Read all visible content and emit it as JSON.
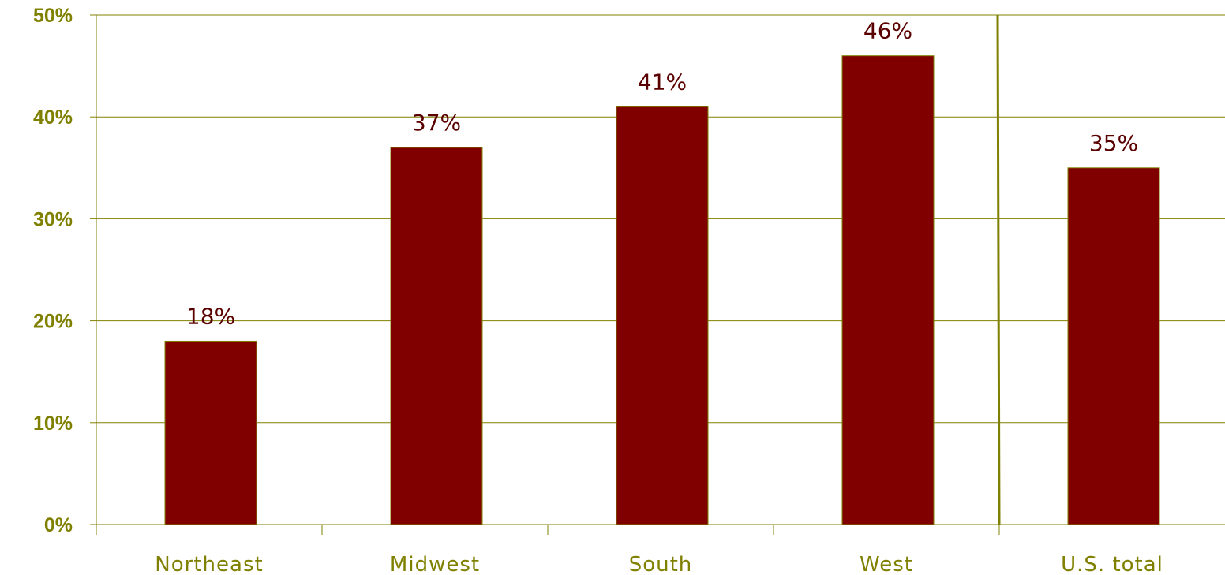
{
  "chart_data": {
    "type": "bar",
    "categories": [
      "Northeast",
      "Midwest",
      "South",
      "West",
      "U.S. total"
    ],
    "values": [
      18,
      37,
      41,
      46,
      35
    ],
    "data_labels": [
      "18%",
      "37%",
      "41%",
      "46%",
      "35%"
    ],
    "ylim": [
      0,
      50
    ],
    "yticks": [
      0,
      10,
      20,
      30,
      40,
      50
    ],
    "ytick_labels": [
      "0%",
      "10%",
      "20%",
      "30%",
      "40%",
      "50%"
    ],
    "grid": true,
    "separator_before_index": 4,
    "colors": {
      "bar": "#800000",
      "bar_border": "#808000",
      "axis": "#808000",
      "gridline": "#808000",
      "data_label": "#5a0000",
      "tick_label": "#808000"
    }
  }
}
